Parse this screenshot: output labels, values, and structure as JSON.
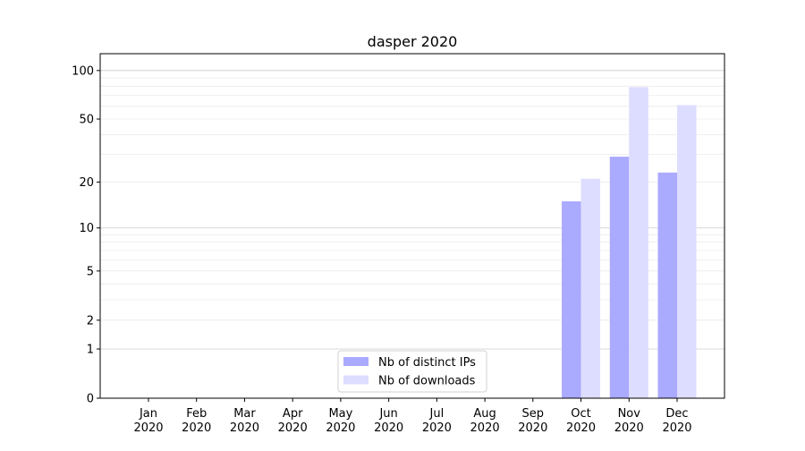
{
  "chart_data": {
    "type": "bar",
    "title": "dasper 2020",
    "xlabel": "",
    "ylabel": "",
    "yscale": "log(1+y)",
    "ylim": [
      0,
      130
    ],
    "yticks": [
      0,
      1,
      2,
      5,
      10,
      20,
      50,
      100
    ],
    "grid": true,
    "legend_placement": "lower center",
    "categories": [
      "Jan\n2020",
      "Feb\n2020",
      "Mar\n2020",
      "Apr\n2020",
      "May\n2020",
      "Jun\n2020",
      "Jul\n2020",
      "Aug\n2020",
      "Sep\n2020",
      "Oct\n2020",
      "Nov\n2020",
      "Dec\n2020"
    ],
    "series": [
      {
        "name": "Nb of distinct IPs",
        "color": "#aaaaff",
        "values": [
          0,
          0,
          0,
          0,
          0,
          0,
          0,
          0,
          0,
          15,
          29,
          23
        ]
      },
      {
        "name": "Nb of downloads",
        "color": "#ddddff",
        "values": [
          0,
          0,
          0,
          0,
          0,
          0,
          0,
          0,
          0,
          21,
          79,
          61
        ]
      }
    ]
  }
}
